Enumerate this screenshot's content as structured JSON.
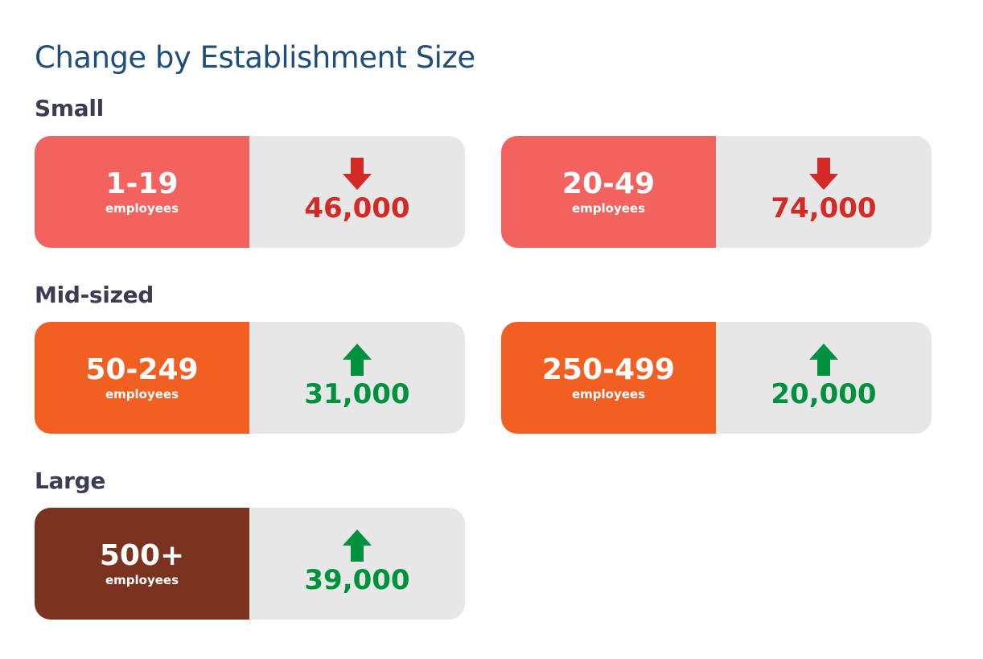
{
  "title": "Change by Establishment Size",
  "colors": {
    "small": "#f26360",
    "mid": "#f15f22",
    "large": "#7b3320",
    "decrease": "#d42a25",
    "increase": "#00913f"
  },
  "sections": [
    {
      "heading": "Small",
      "cards": [
        {
          "range": "1-19",
          "unit": "employees",
          "direction": "down",
          "icon": "arrow-down-icon",
          "value": "46,000"
        },
        {
          "range": "20-49",
          "unit": "employees",
          "direction": "down",
          "icon": "arrow-down-icon",
          "value": "74,000"
        }
      ]
    },
    {
      "heading": "Mid-sized",
      "cards": [
        {
          "range": "50-249",
          "unit": "employees",
          "direction": "up",
          "icon": "arrow-up-icon",
          "value": "31,000"
        },
        {
          "range": "250-499",
          "unit": "employees",
          "direction": "up",
          "icon": "arrow-up-icon",
          "value": "20,000"
        }
      ]
    },
    {
      "heading": "Large",
      "cards": [
        {
          "range": "500+",
          "unit": "employees",
          "direction": "up",
          "icon": "arrow-up-icon",
          "value": "39,000"
        }
      ]
    }
  ]
}
